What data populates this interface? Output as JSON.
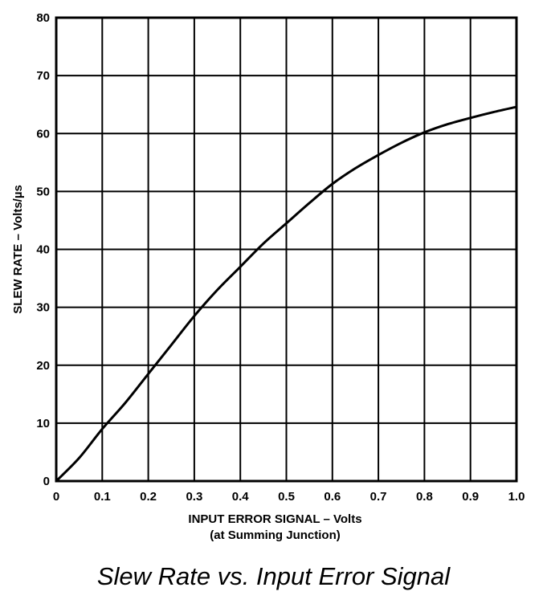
{
  "caption": "Slew Rate vs. Input Error Signal",
  "chart_data": {
    "type": "line",
    "title": "",
    "xlabel": "INPUT ERROR SIGNAL – Volts",
    "xlabel_sub": "(at Summing Junction)",
    "ylabel": "SLEW RATE – Volts/µs",
    "xlim": [
      0,
      1.0
    ],
    "ylim": [
      0,
      80
    ],
    "x_ticks": [
      "0",
      "0.1",
      "0.2",
      "0.3",
      "0.4",
      "0.5",
      "0.6",
      "0.7",
      "0.8",
      "0.9",
      "1.0"
    ],
    "y_ticks": [
      "0",
      "10",
      "20",
      "30",
      "40",
      "50",
      "60",
      "70",
      "80"
    ],
    "grid": true,
    "series": [
      {
        "x": [
          0,
          0.05,
          0.1,
          0.15,
          0.2,
          0.25,
          0.3,
          0.35,
          0.4,
          0.45,
          0.5,
          0.55,
          0.6,
          0.65,
          0.7,
          0.75,
          0.8,
          0.85,
          0.9,
          0.95,
          1.0
        ],
        "y": [
          0,
          4,
          9,
          13.5,
          18.5,
          23.5,
          28.5,
          33,
          37,
          41,
          44.5,
          48,
          51.3,
          54,
          56.3,
          58.4,
          60.2,
          61.6,
          62.7,
          63.7,
          64.6
        ]
      }
    ]
  }
}
